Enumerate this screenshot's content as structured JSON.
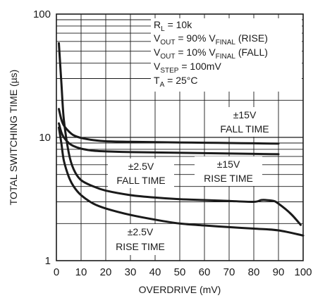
{
  "chart_data": {
    "type": "line",
    "title": "",
    "xlabel": "OVERDRIVE (mV)",
    "ylabel": "TOTAL SWITCHING TIME (µs)",
    "xlim": [
      0,
      100
    ],
    "ylim": [
      1,
      100
    ],
    "yscale": "log",
    "grid": true,
    "x_ticks": [
      "0",
      "10",
      "20",
      "30",
      "40",
      "50",
      "60",
      "70",
      "80",
      "90",
      "100"
    ],
    "y_ticks": [
      "1",
      "10",
      "100"
    ],
    "conditions": {
      "rl": {
        "base": "R",
        "sub": "L",
        "rest": " = 10k"
      },
      "vout_rise": {
        "base": "V",
        "sub": "OUT",
        "mid": " = 90% V",
        "sub2": "FINAL",
        "rest": " (RISE)"
      },
      "vout_fall": {
        "base": "V",
        "sub": "OUT",
        "mid": " = 10% V",
        "sub2": "FINAL",
        "rest": " (FALL)"
      },
      "vstep": {
        "base": "V",
        "sub": "STEP",
        "rest": " = 100mV"
      },
      "ta": {
        "base": "T",
        "sub": "A",
        "rest": " = 25°C"
      }
    },
    "series": [
      {
        "label_line1": "±15V",
        "label_line2": "FALL TIME",
        "x": [
          1,
          2,
          3,
          5,
          7,
          10,
          15,
          20,
          30,
          40,
          50,
          60,
          70,
          80,
          90
        ],
        "y": [
          17,
          14,
          12.5,
          11.2,
          10.4,
          9.9,
          9.5,
          9.3,
          9.2,
          9.15,
          9.1,
          9.05,
          9.0,
          8.95,
          8.9
        ]
      },
      {
        "label_line1": "±15V",
        "label_line2": "RISE TIME",
        "x": [
          1,
          2,
          3,
          5,
          7,
          10,
          15,
          20,
          30,
          40,
          50,
          60,
          70,
          80,
          90
        ],
        "y": [
          13,
          11,
          10,
          9.0,
          8.5,
          8.1,
          7.8,
          7.7,
          7.6,
          7.55,
          7.5,
          7.45,
          7.4,
          7.35,
          7.3
        ]
      },
      {
        "label_line1": "±2.5V",
        "label_line2": "FALL TIME",
        "x": [
          1,
          2,
          3,
          5,
          7,
          10,
          15,
          20,
          30,
          40,
          50,
          60,
          70,
          80,
          83,
          85,
          88,
          90,
          95,
          99
        ],
        "y": [
          58,
          28,
          14,
          7.5,
          5.5,
          4.5,
          4.0,
          3.7,
          3.4,
          3.25,
          3.15,
          3.1,
          3.05,
          3.0,
          3.1,
          3.1,
          3.05,
          2.9,
          2.4,
          1.95
        ]
      },
      {
        "label_line1": "±2.5V",
        "label_line2": "RISE TIME",
        "x": [
          1,
          2,
          3,
          5,
          7,
          10,
          15,
          20,
          30,
          40,
          50,
          60,
          70,
          80,
          90,
          100
        ],
        "y": [
          12,
          9,
          6.5,
          4.8,
          4.0,
          3.4,
          2.9,
          2.65,
          2.35,
          2.15,
          2.0,
          1.93,
          1.87,
          1.82,
          1.76,
          1.6
        ]
      }
    ]
  }
}
